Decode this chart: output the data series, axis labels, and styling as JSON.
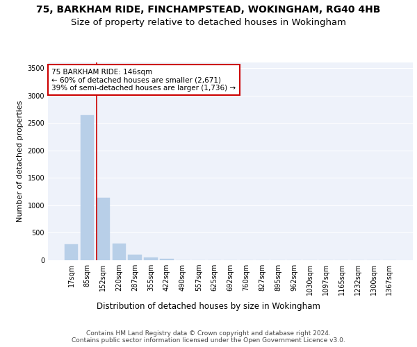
{
  "title1": "75, BARKHAM RIDE, FINCHAMPSTEAD, WOKINGHAM, RG40 4HB",
  "title2": "Size of property relative to detached houses in Wokingham",
  "xlabel": "Distribution of detached houses by size in Wokingham",
  "ylabel": "Number of detached properties",
  "bar_color": "#b8cfe8",
  "bar_edge_color": "#b8cfe8",
  "vline_color": "#cc0000",
  "vline_x_index": 1.6,
  "annotation_text": "75 BARKHAM RIDE: 146sqm\n← 60% of detached houses are smaller (2,671)\n39% of semi-detached houses are larger (1,736) →",
  "annotation_box_color": "#ffffff",
  "annotation_box_edge": "#cc0000",
  "categories": [
    "17sqm",
    "85sqm",
    "152sqm",
    "220sqm",
    "287sqm",
    "355sqm",
    "422sqm",
    "490sqm",
    "557sqm",
    "625sqm",
    "692sqm",
    "760sqm",
    "827sqm",
    "895sqm",
    "962sqm",
    "1030sqm",
    "1097sqm",
    "1165sqm",
    "1232sqm",
    "1300sqm",
    "1367sqm"
  ],
  "values": [
    290,
    2640,
    1140,
    300,
    95,
    45,
    30,
    0,
    0,
    0,
    0,
    0,
    0,
    0,
    0,
    0,
    0,
    0,
    0,
    0,
    0
  ],
  "ylim": [
    0,
    3600
  ],
  "yticks": [
    0,
    500,
    1000,
    1500,
    2000,
    2500,
    3000,
    3500
  ],
  "background_color": "#eef2fa",
  "footer": "Contains HM Land Registry data © Crown copyright and database right 2024.\nContains public sector information licensed under the Open Government Licence v3.0.",
  "grid_color": "#ffffff",
  "title1_fontsize": 10,
  "title2_fontsize": 9.5,
  "xlabel_fontsize": 8.5,
  "ylabel_fontsize": 8,
  "footer_fontsize": 6.5,
  "annot_fontsize": 7.5,
  "tick_fontsize": 7
}
